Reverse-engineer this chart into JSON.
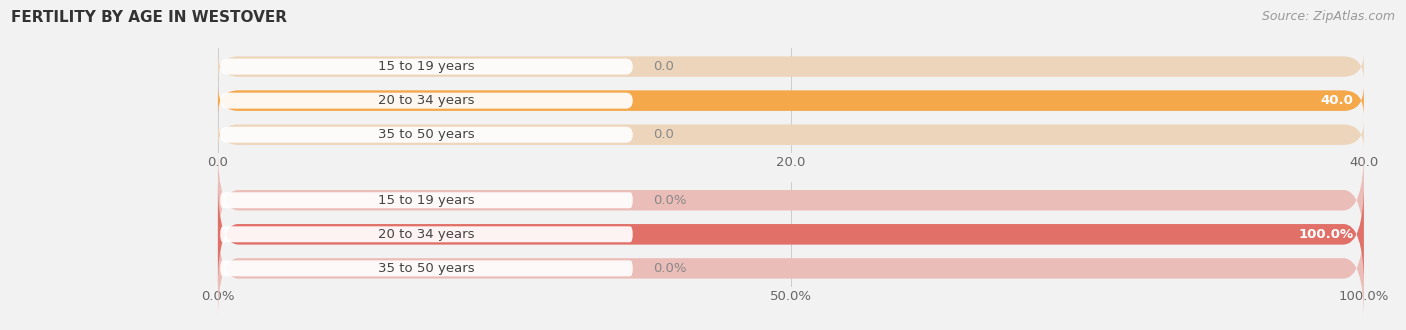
{
  "title": "FERTILITY BY AGE IN WESTOVER",
  "source": "Source: ZipAtlas.com",
  "top_chart": {
    "categories": [
      "15 to 19 years",
      "20 to 34 years",
      "35 to 50 years"
    ],
    "values": [
      0.0,
      40.0,
      0.0
    ],
    "max_value": 40.0,
    "bar_color": "#F5A84A",
    "bar_bg_color": "#EDD5BC",
    "tick_labels": [
      "0.0",
      "20.0",
      "40.0"
    ],
    "tick_values": [
      0.0,
      20.0,
      40.0
    ],
    "value_label_color": "#FFFFFF",
    "label_bg_color": "#FFFFFF",
    "zero_label_color": "#888888"
  },
  "bottom_chart": {
    "categories": [
      "15 to 19 years",
      "20 to 34 years",
      "35 to 50 years"
    ],
    "values": [
      0.0,
      100.0,
      0.0
    ],
    "max_value": 100.0,
    "bar_color": "#E07068",
    "bar_bg_color": "#EBBDB8",
    "tick_labels": [
      "0.0%",
      "50.0%",
      "100.0%"
    ],
    "tick_values": [
      0.0,
      50.0,
      100.0
    ],
    "value_label_color": "#FFFFFF",
    "label_bg_color": "#FFFFFF",
    "zero_label_color": "#888888"
  },
  "bg_color": "#F2F2F2",
  "separator_color": "#CCCCCC",
  "label_color": "#666666",
  "title_color": "#333333",
  "source_color": "#999999",
  "bar_height": 0.6,
  "label_fontsize": 9.5,
  "title_fontsize": 11,
  "source_fontsize": 9
}
